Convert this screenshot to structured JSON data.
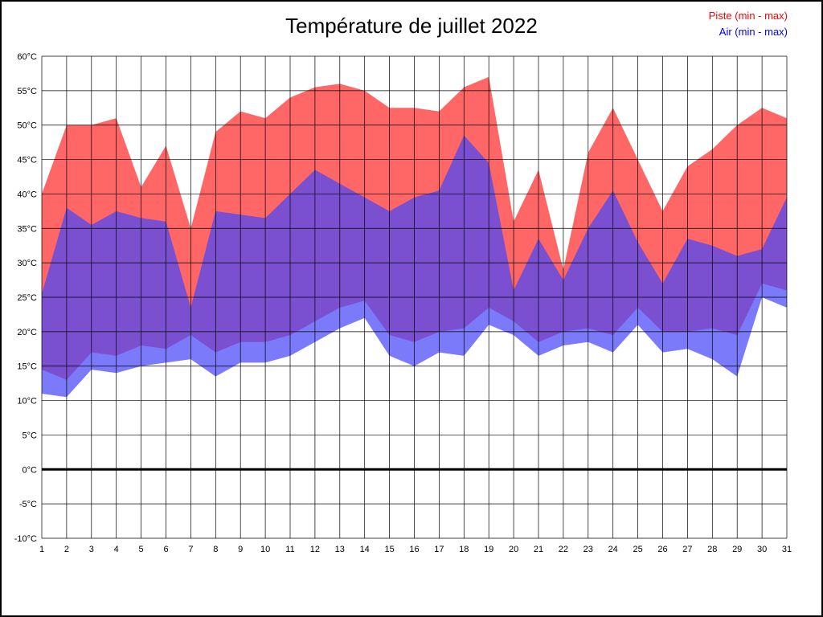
{
  "title": "Température de juillet 2022",
  "legend": {
    "piste_label": "Piste (min - max)",
    "air_label": "Air (min - max)",
    "piste_color": "#ff0000",
    "air_color": "#0000ff"
  },
  "axis": {
    "y_tick_labels": [
      "60°C",
      "55°C",
      "50°C",
      "45°C",
      "40°C",
      "35°C",
      "30°C",
      "25°C",
      "20°C",
      "15°C",
      "10°C",
      "5°C",
      "0°C",
      "-5°C",
      "-10°C"
    ],
    "x_tick_labels": [
      "1",
      "2",
      "3",
      "4",
      "5",
      "6",
      "7",
      "8",
      "9",
      "10",
      "11",
      "12",
      "13",
      "14",
      "15",
      "16",
      "17",
      "18",
      "19",
      "20",
      "21",
      "22",
      "23",
      "24",
      "25",
      "26",
      "27",
      "28",
      "29",
      "30",
      "31"
    ]
  },
  "chart_data": {
    "type": "area",
    "title": "Température de juillet 2022",
    "xlabel": "",
    "ylabel": "",
    "x": [
      1,
      2,
      3,
      4,
      5,
      6,
      7,
      8,
      9,
      10,
      11,
      12,
      13,
      14,
      15,
      16,
      17,
      18,
      19,
      20,
      21,
      22,
      23,
      24,
      25,
      26,
      27,
      28,
      29,
      30,
      31
    ],
    "ylim": [
      -10,
      60
    ],
    "y_tick_step": 5,
    "grid": true,
    "zero_line": true,
    "legend_position": "top-right",
    "series": [
      {
        "id": "piste",
        "name": "Piste (min - max)",
        "fill": "#ff6666",
        "max": [
          40,
          50,
          50,
          51,
          41,
          47,
          35,
          49,
          52,
          51,
          54,
          55.5,
          56,
          55,
          52.5,
          52.5,
          52,
          55.5,
          57,
          36,
          43.5,
          29,
          46,
          52.5,
          45,
          37.5,
          44,
          46.5,
          50,
          52.5,
          51
        ],
        "min": [
          14.5,
          13,
          17,
          16.5,
          18,
          17.5,
          19.5,
          17,
          18.5,
          18.5,
          19.5,
          21.5,
          23.5,
          24.5,
          19.5,
          18.5,
          20,
          20.5,
          23.5,
          21.5,
          18.5,
          20,
          20.5,
          19.5,
          23.5,
          20,
          20,
          20.5,
          19.5,
          27,
          26
        ]
      },
      {
        "id": "air",
        "name": "Air (min - max)",
        "fill": "rgba(70,70,250,0.72)",
        "max": [
          25.5,
          38,
          35.5,
          37.5,
          36.5,
          36,
          23.5,
          37.5,
          37,
          36.5,
          40,
          43.5,
          41.5,
          39.5,
          37.5,
          39.5,
          40.5,
          48.5,
          44.5,
          26,
          33.5,
          27.5,
          35,
          40.5,
          33,
          27,
          33.5,
          32.5,
          31,
          32,
          39.5
        ],
        "min": [
          11,
          10.5,
          14.5,
          14,
          15,
          15.5,
          16,
          13.5,
          15.5,
          15.5,
          16.5,
          18.5,
          20.5,
          22,
          16.5,
          15,
          17,
          16.5,
          21,
          19.5,
          16.5,
          18,
          18.5,
          17,
          21,
          17,
          17.5,
          16,
          13.5,
          25,
          23.5
        ]
      }
    ]
  }
}
